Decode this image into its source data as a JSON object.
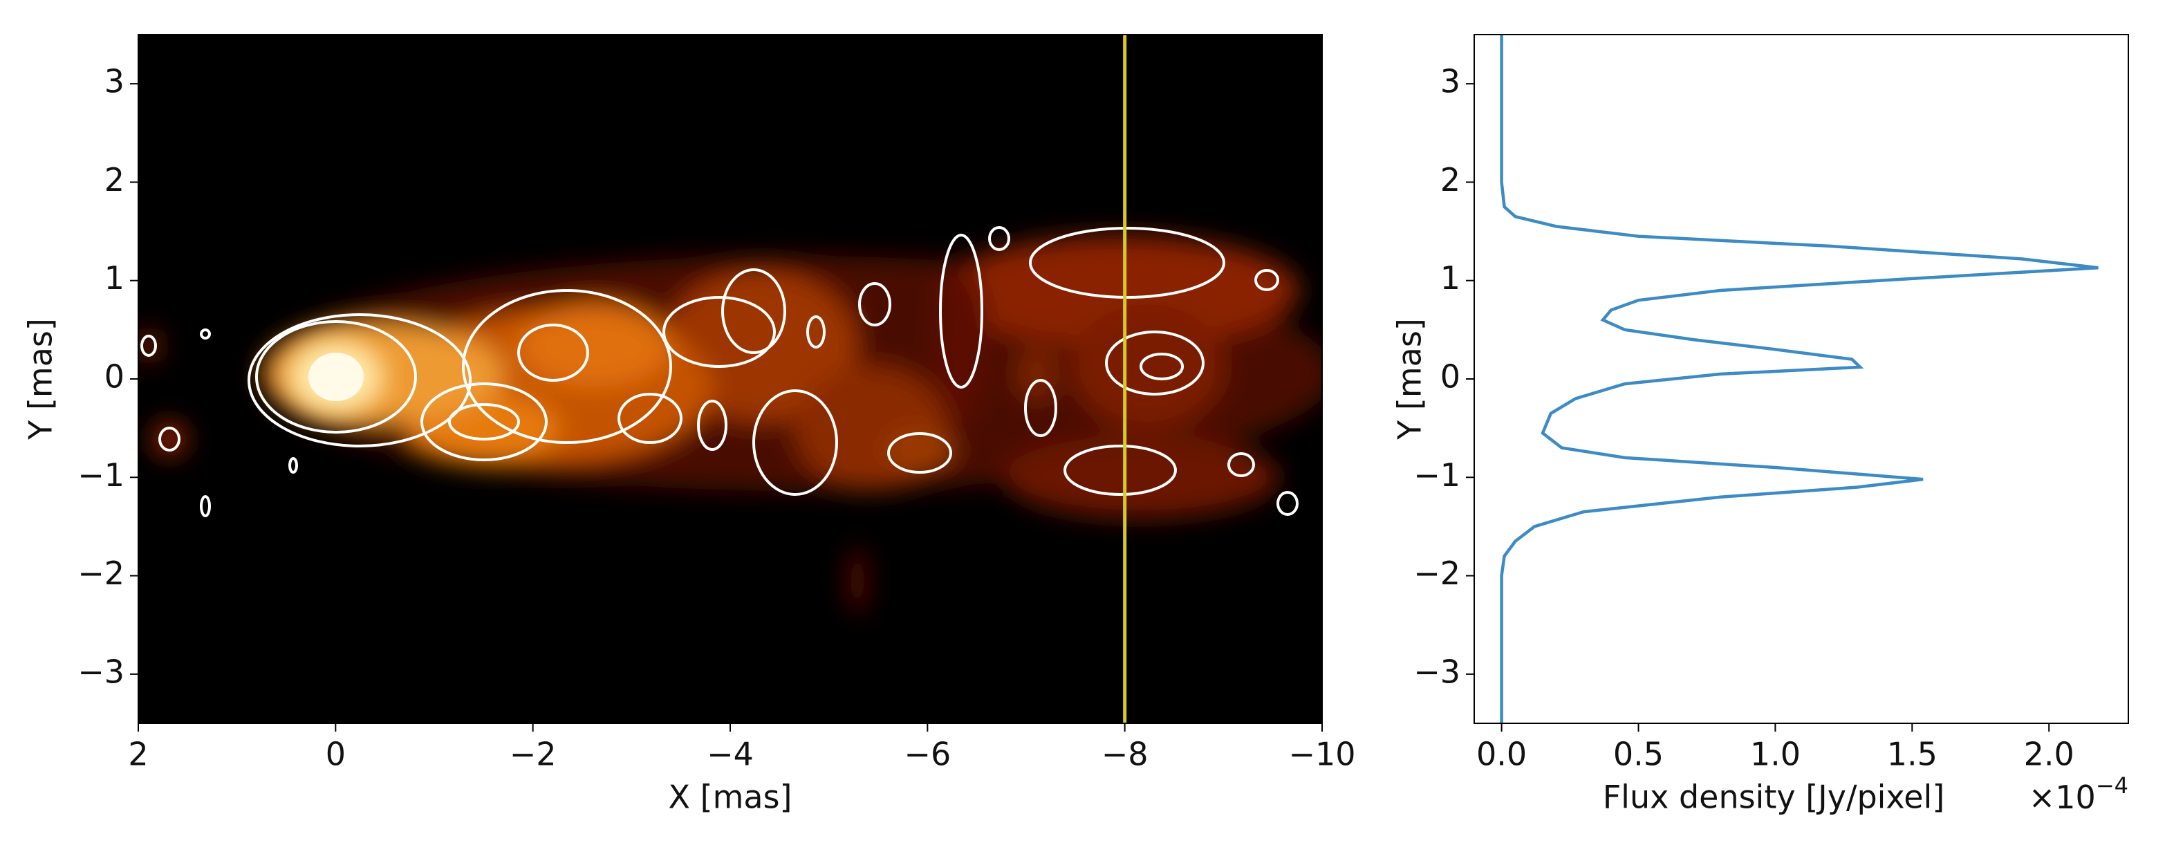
{
  "chart_data": [
    {
      "type": "image",
      "x_label": "X [mas]",
      "y_label": "Y [mas]",
      "xlim": [
        2,
        -10
      ],
      "ylim": [
        -3.5,
        3.5
      ],
      "xticks": [
        2,
        0,
        {
          "value": -2,
          "label": "−2"
        },
        {
          "value": -4,
          "label": "−4"
        },
        {
          "value": -6,
          "label": "−6"
        },
        {
          "value": -8,
          "label": "−8"
        },
        {
          "value": -10,
          "label": "−10"
        }
      ],
      "yticks": [
        3,
        2,
        1,
        0,
        {
          "value": -1,
          "label": "−1"
        },
        {
          "value": -2,
          "label": "−2"
        },
        {
          "value": -3,
          "label": "−3"
        }
      ],
      "vline": {
        "x": -8,
        "color": "#d8cc1c"
      }
    },
    {
      "type": "line",
      "x_label": "Flux density [Jy/pixel]",
      "x_offset": "×10",
      "x_offset_exp": "−4",
      "y_label": "Y [mas]",
      "xlim": [
        -0.1,
        2.29
      ],
      "ylim": [
        -3.5,
        3.5
      ],
      "xticks": [
        {
          "value": 0,
          "label": "0.0"
        },
        {
          "value": 0.5,
          "label": "0.5"
        },
        {
          "value": 1,
          "label": "1.0"
        },
        {
          "value": 1.5,
          "label": "1.5"
        },
        {
          "value": 2,
          "label": "2.0"
        }
      ],
      "yticks": [
        3,
        2,
        1,
        0,
        {
          "value": -1,
          "label": "−1"
        },
        {
          "value": -2,
          "label": "−2"
        },
        {
          "value": -3,
          "label": "−3"
        }
      ],
      "y": [
        3.5,
        2.0,
        1.75,
        1.65,
        1.55,
        1.45,
        1.35,
        1.22,
        1.13,
        1.02,
        0.9,
        0.8,
        0.7,
        0.6,
        0.5,
        0.4,
        0.3,
        0.2,
        0.12,
        0.05,
        -0.05,
        -0.2,
        -0.35,
        -0.55,
        -0.7,
        -0.8,
        -0.9,
        -1.02,
        -1.1,
        -1.2,
        -1.35,
        -1.5,
        -1.65,
        -1.8,
        -2.0,
        -3.5
      ],
      "series": [
        {
          "color": "#3d8bc4",
          "values": [
            0,
            0,
            0.01,
            0.05,
            0.2,
            0.5,
            1.2,
            1.9,
            2.18,
            1.5,
            0.8,
            0.5,
            0.4,
            0.37,
            0.45,
            0.7,
            1.0,
            1.28,
            1.31,
            0.8,
            0.45,
            0.27,
            0.18,
            0.15,
            0.22,
            0.45,
            1.0,
            1.54,
            1.3,
            0.8,
            0.3,
            0.12,
            0.05,
            0.01,
            0,
            0
          ]
        }
      ]
    }
  ]
}
